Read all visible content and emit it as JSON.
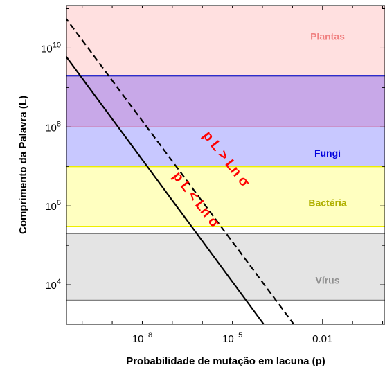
{
  "chart_data": {
    "type": "line",
    "xlabel": "Probabilidade de mutação em lacuna (p)",
    "ylabel": "Comprimento da Palavra (L)",
    "x_scale": "log",
    "y_scale": "log",
    "xlim": [
      3e-11,
      1.2
    ],
    "ylim": [
      1000.0,
      120000000000.0
    ],
    "x_ticks": [
      {
        "value": 1e-08,
        "base": "10",
        "exp": "−8"
      },
      {
        "value": 1e-05,
        "base": "10",
        "exp": "−5"
      },
      {
        "value": 0.01,
        "label": "0.01"
      }
    ],
    "y_ticks": [
      {
        "value": 10000.0,
        "base": "10",
        "exp": "4"
      },
      {
        "value": 1000000.0,
        "base": "10",
        "exp": "6"
      },
      {
        "value": 100000000.0,
        "base": "10",
        "exp": "8"
      },
      {
        "value": 10000000000.0,
        "base": "10",
        "exp": "10"
      }
    ],
    "bands": [
      {
        "name": "Plantas",
        "y0": 2000000000.0,
        "y1": 120000000000.0,
        "fill": "#ffe0e0",
        "edge": "#0000ee",
        "label_color": "#f08080",
        "label_y": 20000000000.0
      },
      {
        "name": "Fungi",
        "y0": 10000000.0,
        "y1": 2000000000.0,
        "fill": "#c8c8ff",
        "edge": "#eeee00",
        "label_color": "#0000dd",
        "label_y": 22000000.0
      },
      {
        "name": "Bactéria",
        "y0": 300000.0,
        "y1": 10000000.0,
        "fill": "#ffffc0",
        "edge": "#eeee00",
        "label_color": "#b0b000",
        "label_y": 1200000.0
      },
      {
        "name": "Vírus",
        "y0": 4000.0,
        "y1": 200000.0,
        "fill": "#e4e4e4",
        "edge": "#808080",
        "label_color": "#909090",
        "label_y": 13000.0
      }
    ],
    "overlap_band": {
      "y0": 100000000.0,
      "y1": 2000000000.0,
      "fill": "#c8a8e8",
      "edge": "#d05070"
    },
    "series": [
      {
        "style": "solid",
        "color": "#000000",
        "x": [
          2.6e-11,
          0.00011
        ],
        "y": [
          6900000000.0,
          1000.0
        ]
      },
      {
        "style": "dashed",
        "color": "#000000",
        "x": [
          2.6e-11,
          0.0011
        ],
        "y": [
          63000000000.0,
          1000.0
        ]
      }
    ],
    "annotations": [
      {
        "text": "p L > Ln σ",
        "x": 6e-06,
        "y": 15000000.0,
        "angle": 52
      },
      {
        "text": "p L < Ln σ",
        "x": 6e-07,
        "y": 1400000.0,
        "angle": 52
      }
    ],
    "grid": false
  }
}
